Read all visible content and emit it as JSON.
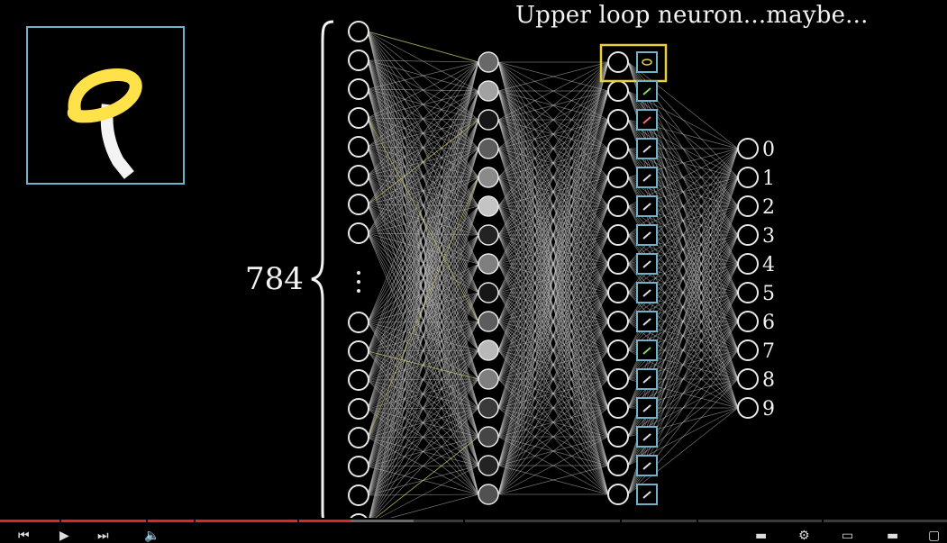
{
  "video": {
    "title_text": "Upper loop neuron...maybe...",
    "input_count_label": "784",
    "output_labels": [
      "0",
      "1",
      "2",
      "3",
      "4",
      "5",
      "6",
      "7",
      "8",
      "9"
    ],
    "progress_fraction": 0.37,
    "accent_color": "#e0242b",
    "highlight_color": "#e8d23a",
    "box_color": "#6fb3c9"
  },
  "player": {
    "controls": [
      "previous-icon",
      "play-icon",
      "next-icon",
      "volume-icon",
      "subtitles-icon",
      "settings-icon",
      "miniplayer-icon",
      "theater-icon",
      "fullscreen-icon"
    ]
  }
}
